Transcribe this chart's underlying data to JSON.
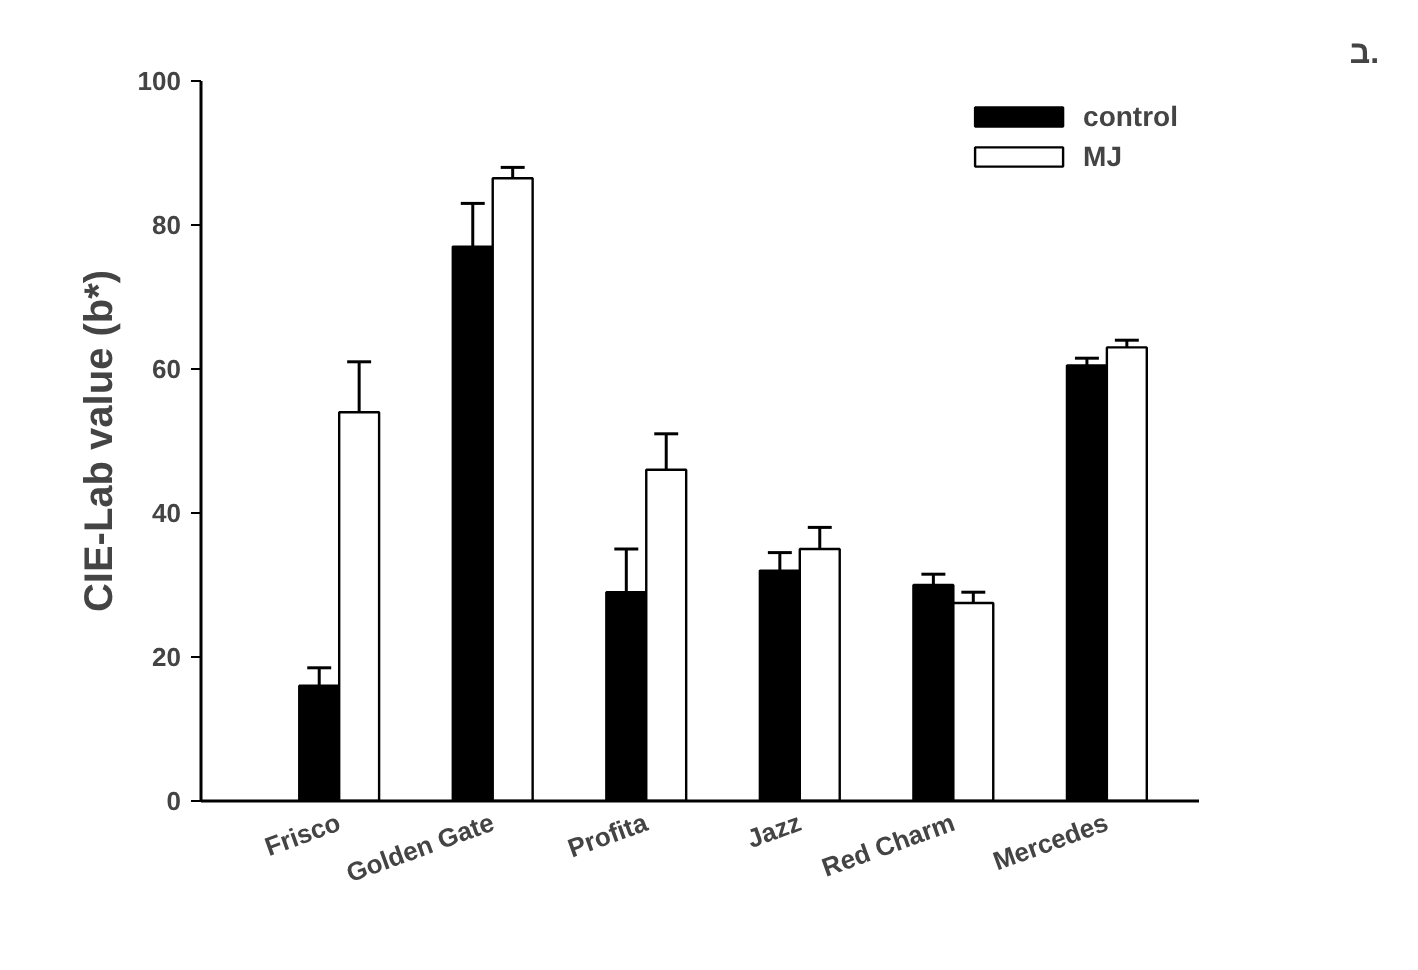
{
  "chart_data": {
    "type": "bar",
    "ylabel": "CIE-Lab value (b*)",
    "categories": [
      "Frisco",
      "Golden Gate",
      "Profita",
      "Jazz",
      "Red Charm",
      "Mercedes"
    ],
    "series": [
      {
        "name": "control",
        "color": "#000000",
        "values": [
          16,
          77,
          29,
          32,
          30,
          60.5
        ],
        "errors": [
          [
            16,
            18.5
          ],
          [
            77,
            83
          ],
          [
            29,
            35
          ],
          [
            32,
            34.5
          ],
          [
            30,
            31.5
          ],
          [
            60.5,
            61.5
          ]
        ]
      },
      {
        "name": "MJ",
        "color": "#ffffff",
        "values": [
          54,
          86.5,
          46,
          35,
          27.5,
          63
        ],
        "errors": [
          [
            54,
            61
          ],
          [
            86.5,
            88
          ],
          [
            46,
            51
          ],
          [
            35,
            38
          ],
          [
            27.5,
            29
          ],
          [
            63,
            64
          ]
        ]
      }
    ],
    "ylim": [
      0,
      100
    ],
    "yticks": [
      0,
      20,
      40,
      60,
      80,
      100
    ],
    "grid": false,
    "legend": "top right",
    "annotations": [
      "ב."
    ]
  }
}
